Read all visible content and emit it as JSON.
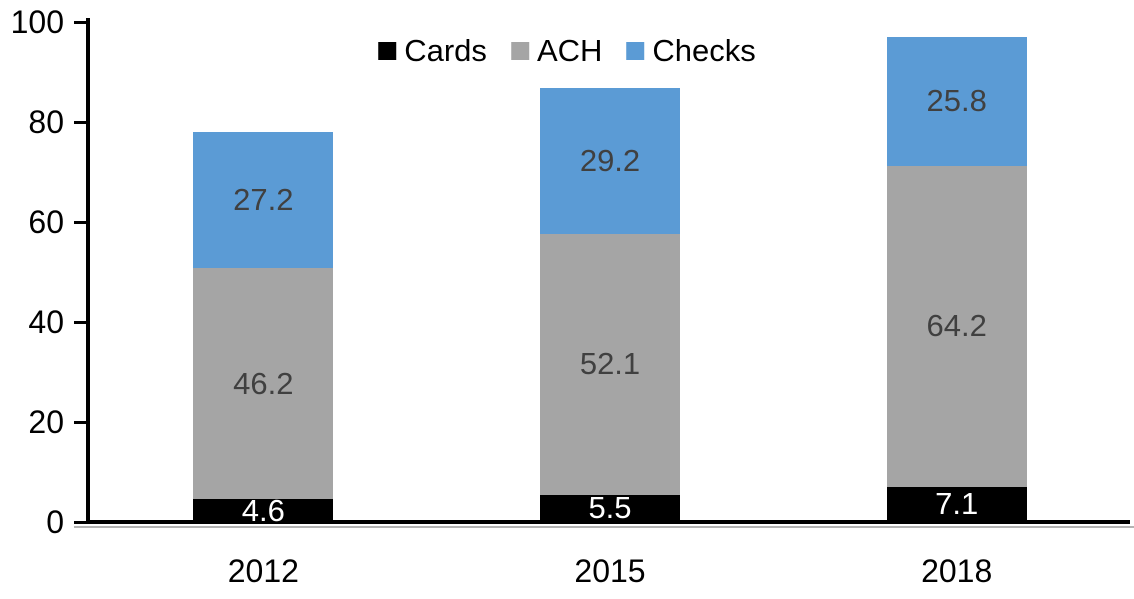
{
  "chart_data": {
    "type": "bar",
    "stacked": true,
    "title": "",
    "categories": [
      "2012",
      "2015",
      "2018"
    ],
    "series": [
      {
        "name": "Cards",
        "color": "#000000",
        "label_color": "#ffffff",
        "values": [
          4.6,
          5.5,
          7.1
        ]
      },
      {
        "name": "ACH",
        "color": "#a5a5a5",
        "label_color": "#404040",
        "values": [
          46.2,
          52.1,
          64.2
        ]
      },
      {
        "name": "Checks",
        "color": "#5b9bd5",
        "label_color": "#404040",
        "values": [
          27.2,
          29.2,
          25.8
        ]
      }
    ],
    "totals": [
      78.0,
      86.8,
      97.1
    ],
    "yticks": [
      0,
      20,
      40,
      60,
      80,
      100
    ],
    "ylim": [
      0,
      100
    ],
    "xlabel": "",
    "ylabel": "",
    "grid": false,
    "legend": {
      "position": "top-center",
      "entries": [
        "Cards",
        "ACH",
        "Checks"
      ]
    },
    "axis_color": "#000000"
  }
}
